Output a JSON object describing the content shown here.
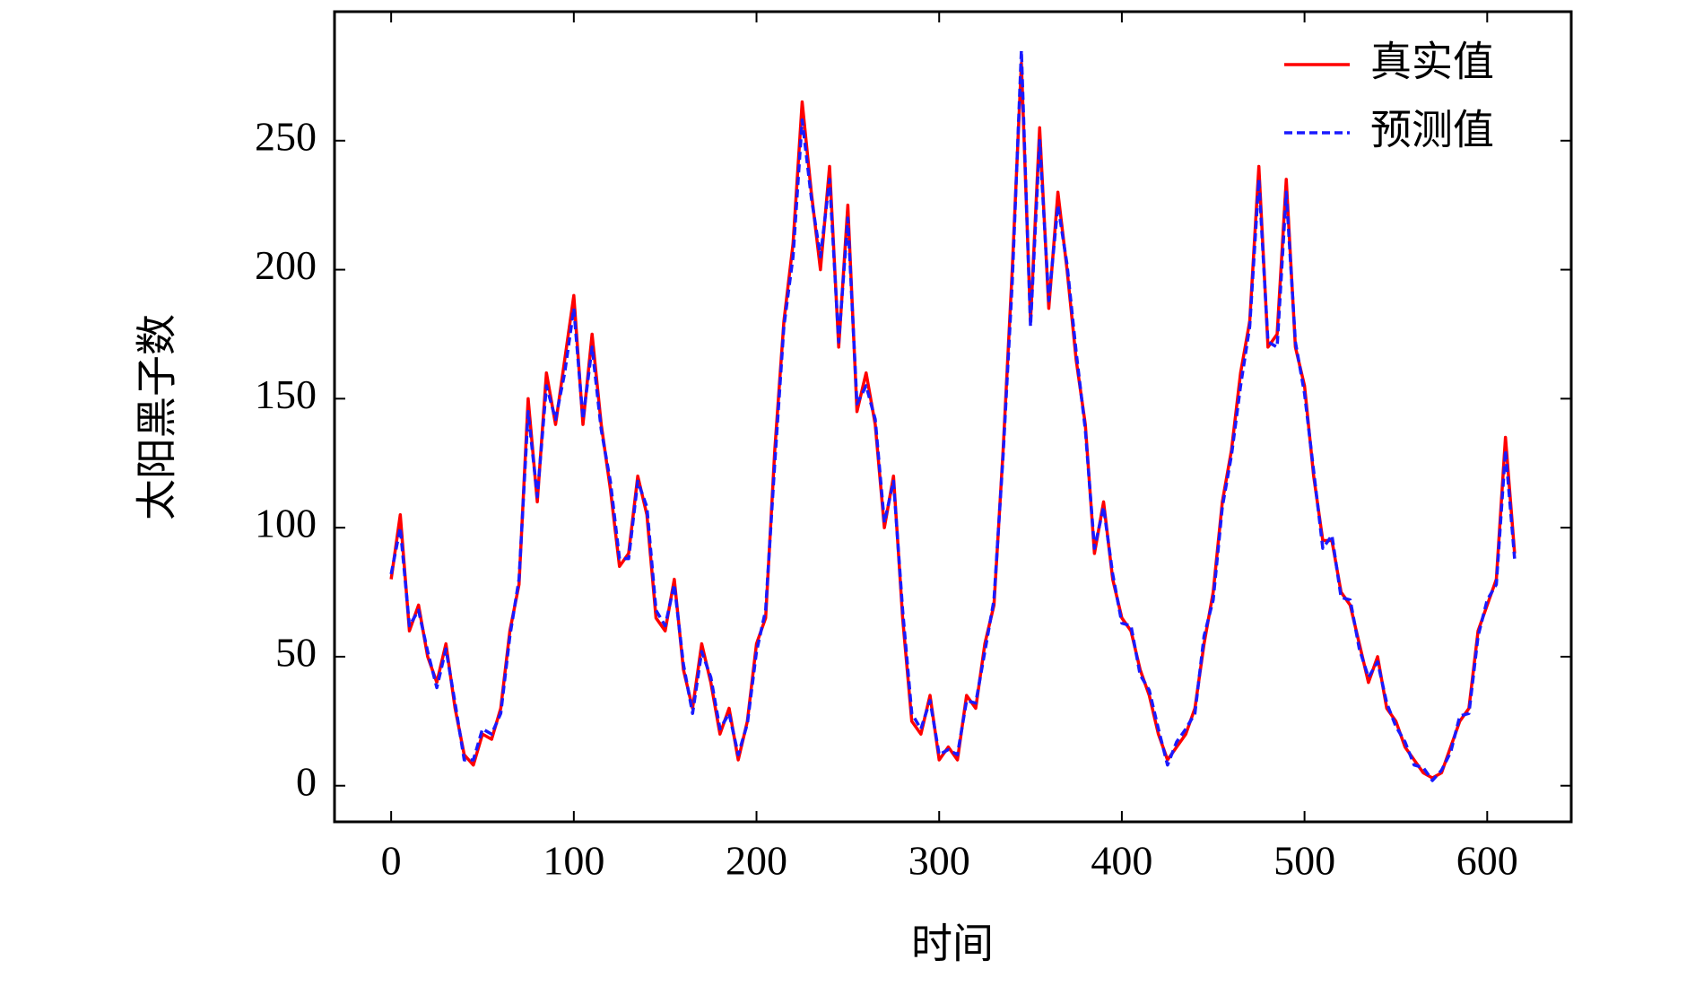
{
  "chart_data": {
    "type": "line",
    "x_label": "时间",
    "y_label": "太阳黑子数",
    "x": [
      0,
      5,
      10,
      15,
      20,
      25,
      30,
      35,
      40,
      45,
      50,
      55,
      60,
      65,
      70,
      75,
      80,
      85,
      90,
      95,
      100,
      105,
      110,
      115,
      120,
      125,
      130,
      135,
      140,
      145,
      150,
      155,
      160,
      165,
      170,
      175,
      180,
      185,
      190,
      195,
      200,
      205,
      210,
      215,
      220,
      225,
      230,
      235,
      240,
      245,
      250,
      255,
      260,
      265,
      270,
      275,
      280,
      285,
      290,
      295,
      300,
      305,
      310,
      315,
      320,
      325,
      330,
      335,
      340,
      345,
      350,
      355,
      360,
      365,
      370,
      375,
      380,
      385,
      390,
      395,
      400,
      405,
      410,
      415,
      420,
      425,
      430,
      435,
      440,
      445,
      450,
      455,
      460,
      465,
      470,
      475,
      480,
      485,
      490,
      495,
      500,
      505,
      510,
      515,
      520,
      525,
      530,
      535,
      540,
      545,
      550,
      555,
      560,
      565,
      570,
      575,
      580,
      585,
      590,
      595,
      600,
      605,
      610,
      615
    ],
    "series": [
      {
        "name": "真实值",
        "color": "#ff0000",
        "dash": false,
        "values": [
          80,
          105,
          60,
          70,
          50,
          40,
          55,
          30,
          12,
          8,
          20,
          18,
          30,
          60,
          78,
          150,
          110,
          160,
          140,
          165,
          190,
          140,
          175,
          140,
          115,
          85,
          90,
          120,
          105,
          65,
          60,
          80,
          45,
          30,
          55,
          40,
          20,
          30,
          10,
          25,
          55,
          65,
          130,
          180,
          210,
          265,
          230,
          200,
          240,
          170,
          225,
          145,
          160,
          140,
          100,
          120,
          65,
          25,
          20,
          35,
          10,
          15,
          10,
          35,
          30,
          55,
          70,
          130,
          200,
          280,
          180,
          255,
          185,
          230,
          200,
          165,
          140,
          90,
          110,
          80,
          65,
          60,
          45,
          35,
          20,
          10,
          15,
          20,
          30,
          55,
          75,
          110,
          130,
          160,
          180,
          240,
          170,
          175,
          235,
          170,
          155,
          120,
          95,
          95,
          75,
          70,
          55,
          40,
          50,
          30,
          25,
          15,
          10,
          5,
          3,
          5,
          15,
          25,
          30,
          60,
          70,
          80,
          135,
          90
        ]
      },
      {
        "name": "预测值",
        "color": "#1a1aff",
        "dash": true,
        "values": [
          82,
          100,
          62,
          68,
          52,
          38,
          53,
          32,
          10,
          10,
          22,
          20,
          28,
          58,
          80,
          145,
          112,
          155,
          142,
          160,
          185,
          142,
          170,
          138,
          118,
          88,
          88,
          118,
          108,
          68,
          62,
          78,
          47,
          28,
          52,
          42,
          22,
          28,
          12,
          24,
          52,
          68,
          125,
          178,
          205,
          258,
          228,
          205,
          235,
          172,
          220,
          148,
          155,
          142,
          102,
          118,
          68,
          28,
          22,
          33,
          12,
          14,
          12,
          33,
          32,
          52,
          72,
          128,
          195,
          285,
          178,
          250,
          188,
          225,
          202,
          168,
          138,
          92,
          108,
          82,
          63,
          62,
          43,
          37,
          22,
          8,
          17,
          22,
          28,
          58,
          72,
          108,
          128,
          155,
          178,
          235,
          172,
          170,
          230,
          172,
          152,
          122,
          92,
          97,
          73,
          72,
          53,
          42,
          48,
          32,
          23,
          17,
          8,
          7,
          2,
          6,
          13,
          27,
          28,
          58,
          72,
          78,
          130,
          88
        ]
      }
    ],
    "xlim": [
      -31,
      646
    ],
    "ylim": [
      -14,
      300
    ],
    "xticks": [
      0,
      100,
      200,
      300,
      400,
      500,
      600
    ],
    "yticks": [
      0,
      50,
      100,
      150,
      200,
      250
    ],
    "legend": "upper right"
  }
}
